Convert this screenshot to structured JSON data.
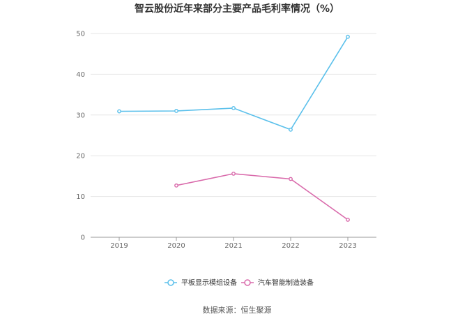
{
  "chart_data": {
    "type": "line",
    "title": "智云股份近年来部分主要产品毛利率情况（%）",
    "x": [
      "2019",
      "2020",
      "2021",
      "2022",
      "2023"
    ],
    "ylim": [
      0,
      50
    ],
    "yticks": [
      0,
      10,
      20,
      30,
      40,
      50
    ],
    "grid": true,
    "legend_position": "bottom",
    "series": [
      {
        "name": "平板显示模组设备",
        "color": "#5bc0eb",
        "values": [
          30.9,
          31.0,
          31.7,
          26.4,
          49.2
        ]
      },
      {
        "name": "汽车智能制造装备",
        "color": "#d96aab",
        "values": [
          null,
          12.7,
          15.6,
          14.3,
          4.3
        ]
      }
    ]
  },
  "source_text": "数据来源：恒生聚源"
}
